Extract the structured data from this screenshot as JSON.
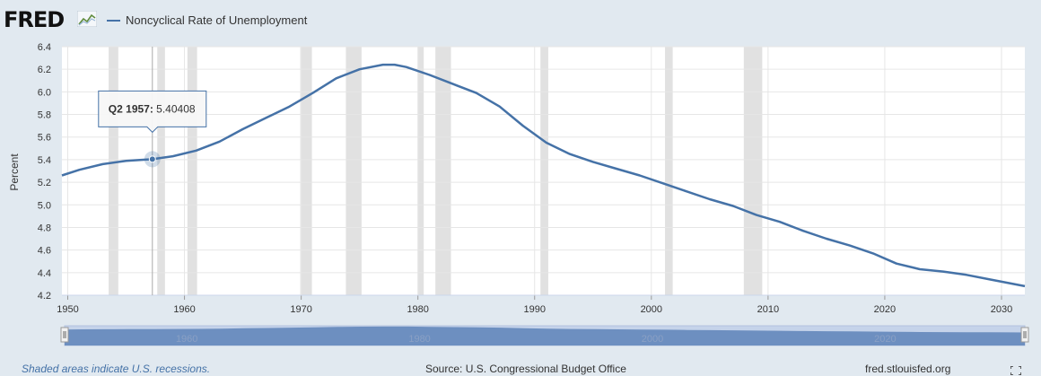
{
  "header": {
    "logo_text": "FRED",
    "legend_label": "Noncyclical Rate of Unemployment",
    "series_color": "#4572a7"
  },
  "chart_data": {
    "type": "line",
    "ylabel": "Percent",
    "xlim": [
      1949.5,
      2032.0
    ],
    "ylim": [
      4.2,
      6.4
    ],
    "y_ticks": [
      "4.2",
      "4.4",
      "4.6",
      "4.8",
      "5.0",
      "5.2",
      "5.4",
      "5.6",
      "5.8",
      "6.0",
      "6.2",
      "6.4"
    ],
    "x_ticks": [
      "1950",
      "1960",
      "1970",
      "1980",
      "1990",
      "2000",
      "2010",
      "2020",
      "2030"
    ],
    "series": [
      {
        "name": "Noncyclical Rate of Unemployment",
        "x": [
          1949.5,
          1951,
          1953,
          1955,
          1957.25,
          1959,
          1961,
          1963,
          1965,
          1967,
          1969,
          1971,
          1973,
          1975,
          1977,
          1978,
          1979,
          1981,
          1983,
          1985,
          1987,
          1989,
          1991,
          1993,
          1995,
          1997,
          1999,
          2001,
          2003,
          2005,
          2007,
          2009,
          2011,
          2013,
          2015,
          2017,
          2019,
          2021,
          2023,
          2025,
          2027,
          2029,
          2031,
          2032
        ],
        "y": [
          5.26,
          5.31,
          5.36,
          5.39,
          5.404,
          5.43,
          5.48,
          5.56,
          5.67,
          5.77,
          5.87,
          5.99,
          6.12,
          6.2,
          6.24,
          6.24,
          6.22,
          6.15,
          6.07,
          5.99,
          5.87,
          5.7,
          5.55,
          5.45,
          5.38,
          5.32,
          5.26,
          5.19,
          5.12,
          5.05,
          4.99,
          4.91,
          4.85,
          4.77,
          4.7,
          4.64,
          4.57,
          4.48,
          4.43,
          4.41,
          4.38,
          4.34,
          4.3,
          4.28
        ]
      }
    ],
    "recessions": [
      [
        1953.5,
        1954.33
      ],
      [
        1957.67,
        1958.33
      ],
      [
        1960.25,
        1961.08
      ],
      [
        1969.92,
        1970.92
      ],
      [
        1973.83,
        1975.17
      ],
      [
        1980.0,
        1980.5
      ],
      [
        1981.5,
        1982.83
      ],
      [
        1990.5,
        1991.17
      ],
      [
        2001.17,
        2001.83
      ],
      [
        2007.92,
        2009.5
      ]
    ],
    "tooltip": {
      "x": 1957.25,
      "y": 5.404,
      "label": "Q2 1957:",
      "value": "5.40408"
    },
    "navigator_ticks": [
      "1960",
      "1980",
      "2000",
      "2020"
    ]
  },
  "footer": {
    "recession_note": "Shaded areas indicate U.S. recessions.",
    "source": "Source: U.S. Congressional Budget Office",
    "url": "fred.stlouisfed.org"
  }
}
